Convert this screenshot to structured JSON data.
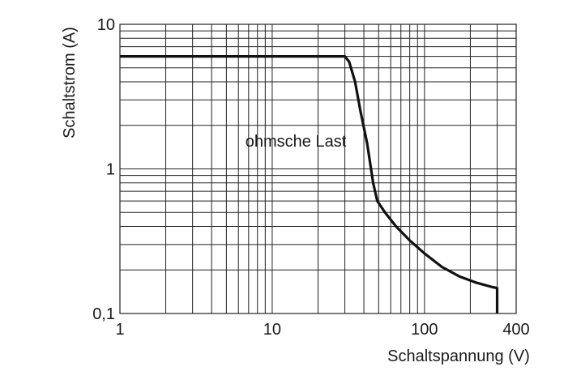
{
  "chart_data": {
    "type": "line",
    "x_scale": "log",
    "y_scale": "log",
    "xlim": [
      1,
      400
    ],
    "ylim": [
      0.1,
      10
    ],
    "xlabel": "Schaltspannung (V)",
    "ylabel": "Schaltstrom (A)",
    "x_tick_labels": [
      {
        "value": 1,
        "label": "1"
      },
      {
        "value": 10,
        "label": "10"
      },
      {
        "value": 100,
        "label": "100"
      },
      {
        "value": 400,
        "label": "400"
      }
    ],
    "y_tick_labels": [
      {
        "value": 10,
        "label": "10"
      },
      {
        "value": 1,
        "label": "1"
      },
      {
        "value": 0.1,
        "label": "0,1"
      }
    ],
    "grid": true,
    "annotation": "ohmsche Last",
    "series": [
      {
        "color": "#111111",
        "points": [
          {
            "x": 1,
            "y": 6
          },
          {
            "x": 30,
            "y": 6
          },
          {
            "x": 32,
            "y": 5.5
          },
          {
            "x": 35,
            "y": 4.0
          },
          {
            "x": 38,
            "y": 2.5
          },
          {
            "x": 42,
            "y": 1.5
          },
          {
            "x": 46,
            "y": 0.8
          },
          {
            "x": 49,
            "y": 0.6
          },
          {
            "x": 55,
            "y": 0.5
          },
          {
            "x": 65,
            "y": 0.4
          },
          {
            "x": 80,
            "y": 0.32
          },
          {
            "x": 100,
            "y": 0.26
          },
          {
            "x": 130,
            "y": 0.21
          },
          {
            "x": 170,
            "y": 0.18
          },
          {
            "x": 220,
            "y": 0.163
          },
          {
            "x": 280,
            "y": 0.152
          },
          {
            "x": 300,
            "y": 0.15
          },
          {
            "x": 300,
            "y": 0.1
          }
        ]
      }
    ]
  }
}
